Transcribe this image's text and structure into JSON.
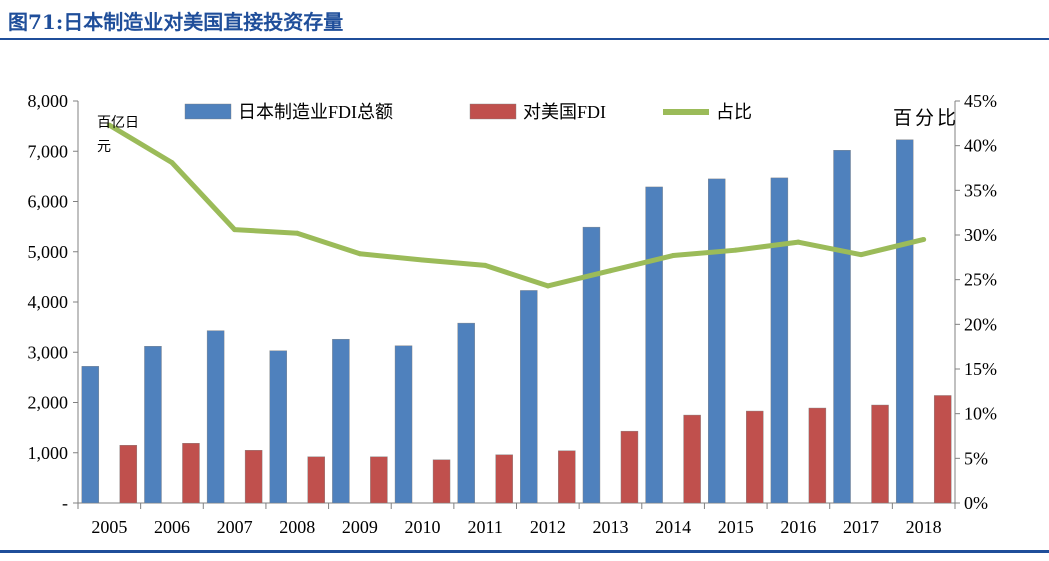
{
  "figure_title": "图71:日本制造业对美国直接投资存量",
  "chart_data": {
    "type": "bar+line",
    "categories": [
      "2005",
      "2006",
      "2007",
      "2008",
      "2009",
      "2010",
      "2011",
      "2012",
      "2013",
      "2014",
      "2015",
      "2016",
      "2017",
      "2018"
    ],
    "series": [
      {
        "name": "日本制造业FDI总额",
        "type": "bar",
        "axis": "left",
        "color": "#4f81bd",
        "values": [
          2720,
          3120,
          3430,
          3030,
          3260,
          3130,
          3580,
          4230,
          5490,
          6290,
          6450,
          6470,
          7020,
          7230
        ]
      },
      {
        "name": "对美国FDI",
        "type": "bar",
        "axis": "left",
        "color": "#c0504d",
        "values": [
          1150,
          1190,
          1050,
          920,
          920,
          860,
          960,
          1040,
          1430,
          1750,
          1830,
          1890,
          1950,
          2140
        ]
      },
      {
        "name": "占比",
        "type": "line",
        "axis": "right",
        "color": "#9bbb59",
        "values": [
          42.3,
          38.1,
          30.6,
          30.2,
          27.9,
          27.2,
          26.6,
          24.3,
          26.0,
          27.7,
          28.3,
          29.2,
          27.8,
          29.5
        ]
      }
    ],
    "y_left": {
      "unit_label": "百亿日元",
      "min": 0,
      "max": 8000,
      "tick_values": [
        0,
        1000,
        2000,
        3000,
        4000,
        5000,
        6000,
        7000,
        8000
      ],
      "tick_labels": [
        "-",
        "1,000",
        "2,000",
        "3,000",
        "4,000",
        "5,000",
        "6,000",
        "7,000",
        "8,000"
      ]
    },
    "y_right": {
      "unit_label": "百分比",
      "min": 0,
      "max": 45,
      "tick_values": [
        0,
        5,
        10,
        15,
        20,
        25,
        30,
        35,
        40,
        45
      ],
      "tick_labels": [
        "0%",
        "5%",
        "10%",
        "15%",
        "20%",
        "25%",
        "30%",
        "35%",
        "40%",
        "45%"
      ]
    },
    "legend_position": "top",
    "grid": false
  }
}
